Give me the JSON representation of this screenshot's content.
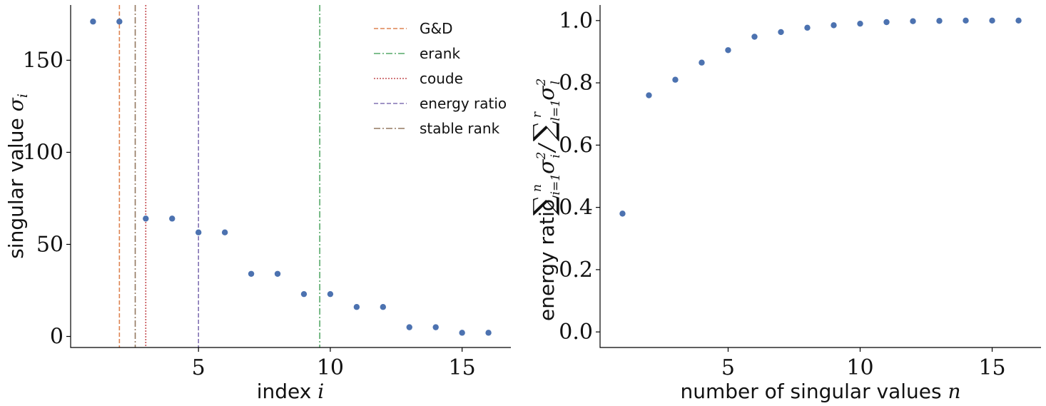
{
  "chart_data": [
    {
      "type": "scatter",
      "x": [
        1,
        2,
        3,
        4,
        5,
        6,
        7,
        8,
        9,
        10,
        11,
        12,
        13,
        14,
        15,
        16
      ],
      "y": [
        171,
        171,
        64,
        64,
        56.5,
        56.5,
        34,
        34,
        23,
        23,
        16,
        16,
        5,
        5,
        2,
        2
      ],
      "xlabel": "index",
      "xlabel_math": "i",
      "ylabel": "singular value",
      "ylabel_math": "σ",
      "ylabel_math_sub": "i",
      "xlim": [
        0.15,
        16.85
      ],
      "ylim": [
        -6,
        180
      ],
      "xticks": [
        5,
        10,
        15
      ],
      "yticks": [
        0,
        50,
        100,
        150
      ],
      "point_color": "#4c72b0",
      "grid": false,
      "legend_position": "upper-right",
      "vlines": [
        {
          "label": "G&D",
          "x": 2.0,
          "style": "dashed",
          "color": "#dd8452"
        },
        {
          "label": "erank",
          "x": 9.6,
          "style": "dashdot",
          "color": "#55a868"
        },
        {
          "label": "coude",
          "x": 3.0,
          "style": "dotted",
          "color": "#c44e52"
        },
        {
          "label": "energy ratio",
          "x": 5.0,
          "style": "dashed",
          "color": "#8172b3"
        },
        {
          "label": "stable rank",
          "x": 2.6,
          "style": "dashdot",
          "color": "#937860"
        }
      ]
    },
    {
      "type": "scatter",
      "x": [
        1,
        2,
        3,
        4,
        5,
        6,
        7,
        8,
        9,
        10,
        11,
        12,
        13,
        14,
        15,
        16
      ],
      "y": [
        0.38,
        0.76,
        0.81,
        0.865,
        0.905,
        0.948,
        0.963,
        0.977,
        0.985,
        0.99,
        0.995,
        0.998,
        0.999,
        1.0,
        1.0,
        1.0
      ],
      "xlabel": "number of singular values",
      "xlabel_math": "n",
      "ylabel": "energy ratio",
      "xlim": [
        0.15,
        16.85
      ],
      "ylim": [
        -0.05,
        1.05
      ],
      "xticks": [
        5,
        10,
        15
      ],
      "yticks": [
        0.0,
        0.2,
        0.4,
        0.6,
        0.8,
        1.0
      ],
      "point_color": "#4c72b0",
      "grid": false
    }
  ]
}
